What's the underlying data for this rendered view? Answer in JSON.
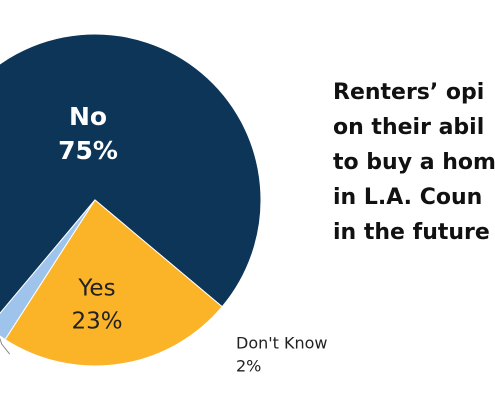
{
  "chart_data": {
    "type": "pie",
    "title_lines": [
      "Renters’ opi",
      "on their abil",
      "to buy a hom",
      "in L.A. Coun",
      "in the future"
    ],
    "categories": [
      "No",
      "Yes",
      "Don't Know"
    ],
    "values": [
      75,
      23,
      2
    ],
    "value_labels": [
      "75%",
      "23%",
      "2%"
    ],
    "colors": [
      "#0c3558",
      "#fbb428",
      "#9fc4ec"
    ]
  }
}
